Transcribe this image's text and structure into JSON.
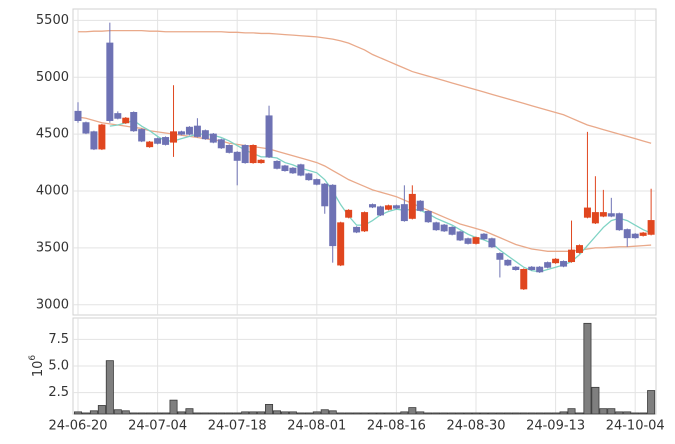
{
  "chart_data": [
    {
      "type": "candlestick",
      "ylim": [
        2910,
        5600
      ],
      "yticks": [
        3000,
        3500,
        4000,
        4500,
        5000,
        5500
      ],
      "grid": true,
      "up_color": "#e0461f",
      "down_color": "#6e72b4",
      "open": [
        4700,
        4600,
        4520,
        4370,
        5300,
        4680,
        4600,
        4690,
        4540,
        4390,
        4460,
        4470,
        4430,
        4520,
        4560,
        4570,
        4530,
        4500,
        4450,
        4400,
        4340,
        4400,
        4250,
        4250,
        4660,
        4260,
        4220,
        4200,
        4230,
        4150,
        4100,
        4060,
        4050,
        3350,
        3770,
        3680,
        3650,
        3880,
        3860,
        3840,
        3870,
        3880,
        3760,
        3910,
        3820,
        3720,
        3700,
        3680,
        3640,
        3580,
        3540,
        3620,
        3580,
        3450,
        3390,
        3330,
        3140,
        3330,
        3330,
        3370,
        3370,
        3380,
        3380,
        3460,
        3770,
        3720,
        3780,
        3800,
        3800,
        3660,
        3620,
        3610,
        3620
      ],
      "high": [
        4780,
        4610,
        4530,
        4590,
        5480,
        4700,
        4650,
        4700,
        4550,
        4440,
        4470,
        4480,
        4930,
        4530,
        4570,
        4640,
        4540,
        4510,
        4460,
        4410,
        4350,
        4410,
        4410,
        4280,
        4750,
        4270,
        4230,
        4210,
        4240,
        4160,
        4110,
        4070,
        4060,
        3730,
        3840,
        3690,
        3820,
        3890,
        3870,
        3880,
        3880,
        4050,
        4050,
        3920,
        3830,
        3730,
        3710,
        3690,
        3650,
        3590,
        3600,
        3630,
        3590,
        3460,
        3400,
        3340,
        3320,
        3340,
        3340,
        3380,
        3410,
        3390,
        3740,
        3530,
        4520,
        4130,
        4010,
        3940,
        3810,
        3670,
        3630,
        3640,
        4020
      ],
      "low": [
        4600,
        4500,
        4360,
        4360,
        4600,
        4630,
        4590,
        4520,
        4430,
        4380,
        4410,
        4400,
        4300,
        4490,
        4490,
        4470,
        4450,
        4420,
        4370,
        4330,
        4050,
        4240,
        4240,
        4240,
        4290,
        4190,
        4170,
        4150,
        4130,
        4090,
        4050,
        3800,
        3370,
        3340,
        3760,
        3630,
        3640,
        3850,
        3780,
        3830,
        3840,
        3730,
        3750,
        3820,
        3720,
        3650,
        3640,
        3610,
        3560,
        3530,
        3530,
        3570,
        3500,
        3240,
        3340,
        3300,
        3130,
        3300,
        3280,
        3320,
        3360,
        3330,
        3370,
        3450,
        3760,
        3710,
        3770,
        3770,
        3650,
        3510,
        3580,
        3600,
        3610
      ],
      "close": [
        4620,
        4510,
        4370,
        4580,
        4620,
        4640,
        4640,
        4530,
        4440,
        4430,
        4420,
        4410,
        4520,
        4500,
        4500,
        4480,
        4460,
        4430,
        4380,
        4340,
        4270,
        4250,
        4400,
        4270,
        4300,
        4200,
        4180,
        4160,
        4140,
        4100,
        4060,
        3870,
        3520,
        3720,
        3830,
        3640,
        3810,
        3860,
        3790,
        3870,
        3850,
        3740,
        3970,
        3830,
        3730,
        3660,
        3650,
        3620,
        3570,
        3540,
        3590,
        3580,
        3510,
        3400,
        3350,
        3310,
        3310,
        3310,
        3290,
        3330,
        3400,
        3340,
        3480,
        3520,
        3850,
        3810,
        3810,
        3780,
        3660,
        3590,
        3590,
        3630,
        3740
      ],
      "series": [
        {
          "color": "#e9a98a",
          "values": [
            5400,
            5400,
            5405,
            5405,
            5410,
            5410,
            5410,
            5410,
            5410,
            5405,
            5405,
            5400,
            5400,
            5400,
            5400,
            5400,
            5400,
            5400,
            5400,
            5395,
            5395,
            5390,
            5390,
            5385,
            5385,
            5380,
            5375,
            5370,
            5365,
            5360,
            5355,
            5345,
            5335,
            5320,
            5300,
            5270,
            5240,
            5200,
            5170,
            5140,
            5110,
            5080,
            5050,
            5030,
            5010,
            4990,
            4970,
            4950,
            4930,
            4910,
            4890,
            4870,
            4850,
            4830,
            4810,
            4790,
            4770,
            4750,
            4730,
            4710,
            4690,
            4670,
            4640,
            4610,
            4580,
            4560,
            4540,
            4520,
            4500,
            4480,
            4460,
            4440,
            4420
          ]
        },
        {
          "color": "#e9a98a",
          "values": [
            4650,
            4640,
            4620,
            4600,
            4590,
            4580,
            4570,
            4560,
            4550,
            4530,
            4520,
            4510,
            4500,
            4490,
            4480,
            4470,
            4460,
            4450,
            4440,
            4420,
            4410,
            4400,
            4390,
            4380,
            4370,
            4350,
            4330,
            4310,
            4290,
            4270,
            4250,
            4220,
            4180,
            4140,
            4100,
            4070,
            4040,
            4010,
            3990,
            3970,
            3950,
            3920,
            3890,
            3860,
            3830,
            3800,
            3770,
            3740,
            3710,
            3690,
            3670,
            3650,
            3620,
            3590,
            3560,
            3530,
            3510,
            3490,
            3480,
            3470,
            3470,
            3470,
            3470,
            3480,
            3490,
            3500,
            3500,
            3505,
            3510,
            3510,
            3515,
            3520,
            3525
          ]
        },
        {
          "color": "#7fd3c4",
          "values": [
            null,
            null,
            null,
            null,
            4570,
            4580,
            4600,
            4620,
            4570,
            4530,
            4480,
            4440,
            4440,
            4460,
            4480,
            4500,
            4500,
            4490,
            4470,
            4440,
            4400,
            4360,
            4330,
            4300,
            4300,
            4290,
            4250,
            4230,
            4200,
            4180,
            4160,
            4100,
            4000,
            3880,
            3780,
            3700,
            3700,
            3740,
            3790,
            3820,
            3840,
            3830,
            3840,
            3830,
            3800,
            3760,
            3730,
            3700,
            3660,
            3620,
            3590,
            3570,
            3540,
            3480,
            3430,
            3380,
            3330,
            3300,
            3290,
            3310,
            3330,
            3350,
            3380,
            3440,
            3520,
            3600,
            3680,
            3740,
            3760,
            3740,
            3700,
            3660,
            3630
          ]
        }
      ]
    },
    {
      "type": "bar",
      "axis_label": {
        "base": "10",
        "exponent": "6"
      },
      "ylim": [
        0.5,
        9.5
      ],
      "yticks": [
        2.5,
        {
          "value": 5,
          "label": "5.0"
        },
        7.5
      ],
      "grid": true,
      "color": "#7f7f7f",
      "categories": [
        "24-06-20",
        null,
        null,
        null,
        null,
        null,
        null,
        null,
        null,
        null,
        "24-07-04",
        null,
        null,
        null,
        null,
        null,
        null,
        null,
        null,
        null,
        "24-07-18",
        null,
        null,
        null,
        null,
        null,
        null,
        null,
        null,
        null,
        "24-08-01",
        null,
        null,
        null,
        null,
        null,
        null,
        null,
        null,
        null,
        "24-08-16",
        null,
        null,
        null,
        null,
        null,
        null,
        null,
        null,
        null,
        "24-08-30",
        null,
        null,
        null,
        null,
        null,
        null,
        null,
        null,
        null,
        "24-09-13",
        null,
        null,
        null,
        null,
        null,
        null,
        null,
        null,
        null,
        "24-10-04",
        null,
        null
      ],
      "values": [
        0.7,
        0.6,
        0.8,
        1.3,
        5.5,
        0.9,
        0.8,
        0.6,
        0.6,
        0.6,
        0.6,
        0.6,
        1.8,
        0.7,
        1.0,
        0.6,
        0.6,
        0.6,
        0.6,
        0.6,
        0.6,
        0.7,
        0.7,
        0.7,
        1.4,
        0.8,
        0.7,
        0.7,
        0.6,
        0.6,
        0.7,
        0.9,
        0.8,
        0.6,
        0.6,
        0.6,
        0.6,
        0.6,
        0.6,
        0.6,
        0.6,
        0.7,
        1.1,
        0.7,
        0.6,
        0.6,
        0.6,
        0.6,
        0.6,
        0.6,
        0.6,
        0.6,
        0.6,
        0.6,
        0.6,
        0.6,
        0.6,
        0.6,
        0.6,
        0.6,
        0.6,
        0.7,
        1.0,
        0.6,
        9.0,
        3.0,
        1.0,
        1.0,
        0.7,
        0.7,
        0.6,
        0.6,
        2.7
      ]
    }
  ]
}
